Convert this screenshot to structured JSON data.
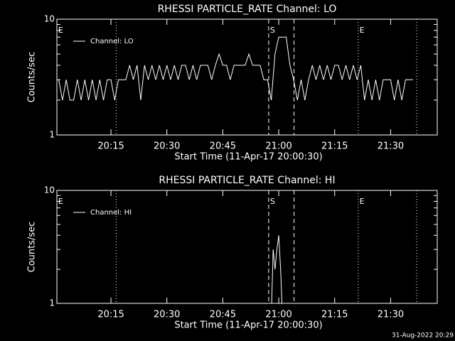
{
  "chart_data": [
    {
      "type": "line",
      "title": "RHESSI PARTICLE_RATE Channel: LO",
      "xlabel": "Start Time (11-Apr-17 20:00:30)",
      "ylabel": "Counts/sec",
      "x": [
        1,
        2,
        3,
        4,
        5,
        6,
        7,
        8,
        9,
        10,
        11,
        12,
        13,
        14,
        15,
        16,
        17,
        18,
        19,
        20,
        21,
        22,
        23,
        24,
        25,
        26,
        27,
        28,
        29,
        30,
        31,
        32,
        33,
        34,
        35,
        36,
        37,
        38,
        39,
        40,
        41,
        42,
        43,
        44,
        45,
        46,
        47,
        48,
        49,
        50,
        51,
        52,
        53,
        54,
        55,
        56,
        57,
        58,
        59,
        60,
        61,
        62,
        63,
        64,
        65,
        66,
        67,
        68,
        69,
        70,
        71,
        72,
        73,
        74,
        75,
        76,
        77,
        78,
        79,
        80,
        81,
        82,
        83,
        84,
        85,
        86,
        87,
        88,
        89,
        90,
        91,
        92,
        93,
        94,
        95,
        96
      ],
      "series": [
        {
          "name": "Channel: LO",
          "color": "#ffffff",
          "values": [
            3,
            2,
            3,
            2,
            2,
            3,
            2,
            3,
            2,
            3,
            2,
            3,
            2,
            3,
            3,
            2,
            3,
            3,
            3,
            4,
            3,
            4,
            2,
            4,
            3,
            4,
            3,
            4,
            3,
            4,
            3,
            4,
            3,
            4,
            4,
            3,
            4,
            3,
            4,
            4,
            4,
            3,
            4,
            5,
            4,
            4,
            3,
            4,
            4,
            4,
            4,
            5,
            4,
            4,
            4,
            3,
            3,
            2,
            5,
            7,
            7,
            7,
            4,
            3,
            2,
            3,
            2,
            3,
            4,
            3,
            4,
            3,
            4,
            3,
            4,
            4,
            3,
            4,
            3,
            4,
            3,
            4,
            2,
            3,
            2,
            3,
            2,
            3,
            3,
            3,
            2,
            3,
            2,
            3,
            3,
            3
          ]
        }
      ],
      "log_y": true,
      "ylim": [
        1,
        10
      ],
      "yticks": [
        1,
        10
      ],
      "yminorticks": [
        2,
        3,
        4,
        5,
        6,
        7,
        8,
        9
      ],
      "xlim": [
        0.5,
        102.5
      ],
      "xticks": [
        {
          "value": 15,
          "label": "20:15"
        },
        {
          "value": 30,
          "label": "20:30"
        },
        {
          "value": 45,
          "label": "20:45"
        },
        {
          "value": 60,
          "label": "21:00"
        },
        {
          "value": 75,
          "label": "21:15"
        },
        {
          "value": 90,
          "label": "21:30"
        }
      ],
      "vlines": [
        {
          "x": 16.4,
          "style": "dotted"
        },
        {
          "x": 57.3,
          "style": "dashed"
        },
        {
          "x": 64.1,
          "style": "dashed"
        },
        {
          "x": 81.3,
          "style": "dotted"
        },
        {
          "x": 97.0,
          "style": "dotted"
        }
      ],
      "annotations": [
        {
          "text": "E",
          "x": 0.5
        },
        {
          "text": "S",
          "x": 57.3
        },
        {
          "text": "E",
          "x": 81.3
        }
      ],
      "legend": "upper left"
    },
    {
      "type": "line",
      "title": "RHESSI PARTICLE_RATE Channel: HI",
      "xlabel": "Start Time (11-Apr-17 20:00:30)",
      "ylabel": "Counts/sec",
      "x": [
        57,
        58,
        58.5,
        59,
        59.5,
        60,
        60.5,
        61,
        62
      ],
      "series": [
        {
          "name": "Channel: HI",
          "color": "#ffffff",
          "values": [
            0,
            0,
            3,
            2,
            3,
            4,
            2,
            0,
            0
          ]
        }
      ],
      "log_y": true,
      "ylim": [
        1,
        10
      ],
      "yticks": [
        1,
        10
      ],
      "yminorticks": [
        2,
        3,
        4,
        5,
        6,
        7,
        8,
        9
      ],
      "xlim": [
        0.5,
        102.5
      ],
      "xticks": [
        {
          "value": 15,
          "label": "20:15"
        },
        {
          "value": 30,
          "label": "20:30"
        },
        {
          "value": 45,
          "label": "20:45"
        },
        {
          "value": 60,
          "label": "21:00"
        },
        {
          "value": 75,
          "label": "21:15"
        },
        {
          "value": 90,
          "label": "21:30"
        }
      ],
      "vlines": [
        {
          "x": 16.4,
          "style": "dotted"
        },
        {
          "x": 57.3,
          "style": "dashed"
        },
        {
          "x": 64.1,
          "style": "dashed"
        },
        {
          "x": 81.3,
          "style": "dotted"
        },
        {
          "x": 97.0,
          "style": "dotted"
        }
      ],
      "annotations": [
        {
          "text": "E",
          "x": 0.5
        },
        {
          "text": "S",
          "x": 57.3
        },
        {
          "text": "E",
          "x": 81.3
        }
      ],
      "legend": "upper left"
    }
  ],
  "footer": "31-Aug-2022 20:29"
}
